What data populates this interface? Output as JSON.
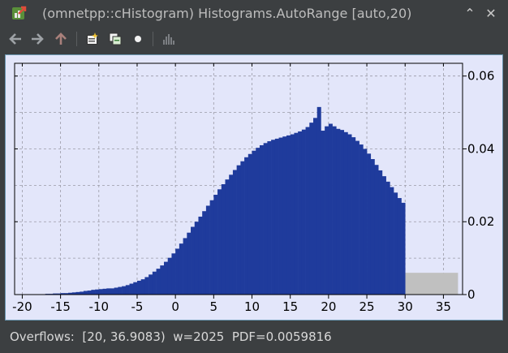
{
  "window": {
    "title": "(omnetpp::cHistogram) Histograms.AutoRange [auto,20)",
    "icons": {
      "app": "histogram-app-icon",
      "collapse": "chevron-up-icon",
      "close": "close-icon"
    },
    "collapse_glyph": "⌃",
    "close_glyph": "✕"
  },
  "toolbar": {
    "icons": [
      "back-arrow-icon",
      "forward-arrow-icon",
      "up-arrow-icon",
      "inspect-object-icon",
      "copy-icon",
      "run-dot-icon",
      "histogram-chart-icon"
    ]
  },
  "status": {
    "text": "Overflows:  [20, 36.9083)  w=2025  PDF=0.0059816"
  },
  "colors": {
    "bar": "#1f3b9c",
    "overflow": "#c0c0c0",
    "plot_bg": "#e3e6fa",
    "grid": "#9a9aa6"
  },
  "chart_data": {
    "type": "bar",
    "title": "",
    "xlabel": "",
    "ylabel": "",
    "xlim": [
      -21,
      37.5
    ],
    "ylim": [
      0,
      0.0635
    ],
    "grid": true,
    "x_ticks": [
      -20,
      -15,
      -10,
      -5,
      0,
      5,
      10,
      15,
      20,
      25,
      30,
      35
    ],
    "y_ticks": [
      0,
      0.02,
      0.04,
      0.06
    ],
    "y_tick_labels": [
      "0",
      "0.02",
      "0.04",
      "0.06"
    ],
    "y_axis_side": "right",
    "bin_start": -20,
    "bin_width": 0.5,
    "values": [
      0.0001,
      0.0001,
      0.0001,
      0.0001,
      0.0001,
      0.0001,
      0.0002,
      0.0002,
      0.0003,
      0.0003,
      0.0004,
      0.0004,
      0.0005,
      0.0006,
      0.0007,
      0.0008,
      0.001,
      0.0011,
      0.0013,
      0.0014,
      0.0015,
      0.0016,
      0.0017,
      0.0017,
      0.0019,
      0.0021,
      0.0023,
      0.0026,
      0.003,
      0.0034,
      0.0038,
      0.0042,
      0.0048,
      0.0055,
      0.0063,
      0.0071,
      0.008,
      0.009,
      0.0101,
      0.0113,
      0.0126,
      0.014,
      0.0155,
      0.017,
      0.0186,
      0.02,
      0.0214,
      0.0229,
      0.0244,
      0.0259,
      0.0274,
      0.0289,
      0.0303,
      0.0316,
      0.0329,
      0.0342,
      0.0355,
      0.0366,
      0.0377,
      0.0386,
      0.0395,
      0.0403,
      0.041,
      0.0416,
      0.0421,
      0.0425,
      0.0428,
      0.0431,
      0.0434,
      0.0437,
      0.044,
      0.0444,
      0.0448,
      0.0453,
      0.046,
      0.0472,
      0.0485,
      0.0515,
      0.045,
      0.0462,
      0.0469,
      0.0462,
      0.0455,
      0.0452,
      0.0446,
      0.044,
      0.0432,
      0.0422,
      0.0412,
      0.04,
      0.0387,
      0.0372,
      0.0356,
      0.0341,
      0.0325,
      0.031,
      0.0295,
      0.028,
      0.0265,
      0.0252
    ],
    "overflow": {
      "x_from": 20,
      "x_to": 36.9083,
      "value": 0.0059816,
      "label": "Overflows"
    }
  }
}
